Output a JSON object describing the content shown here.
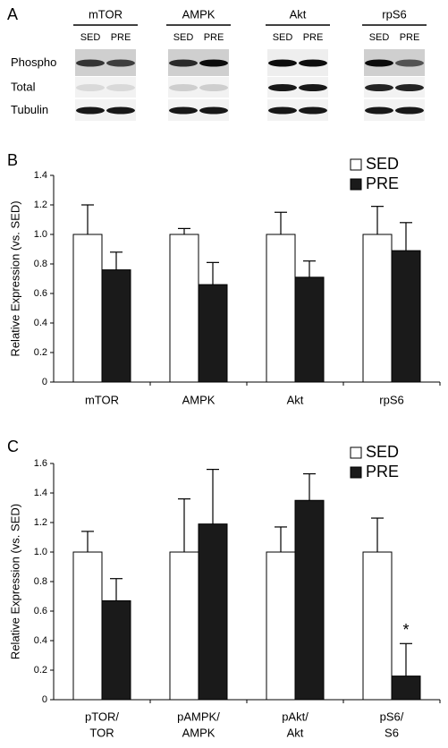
{
  "panel_a": {
    "label": "A",
    "groups": [
      {
        "name": "mTOR",
        "lanes": [
          "SED",
          "PRE"
        ]
      },
      {
        "name": "AMPK",
        "lanes": [
          "SED",
          "PRE"
        ]
      },
      {
        "name": "Akt",
        "lanes": [
          "SED",
          "PRE"
        ]
      },
      {
        "name": "rpS6",
        "lanes": [
          "SED",
          "PRE"
        ]
      }
    ],
    "rows": [
      "Phospho",
      "Total",
      "Tubulin"
    ]
  },
  "chart_data": [
    {
      "type": "bar",
      "label": "B",
      "ylabel": "Relative Expression (vs. SED)",
      "categories": [
        [
          "mTOR"
        ],
        [
          "AMPK"
        ],
        [
          "Akt"
        ],
        [
          "rpS6"
        ]
      ],
      "series": [
        {
          "name": "SED",
          "color": "#ffffff",
          "values": [
            1.0,
            1.0,
            1.0,
            1.0
          ],
          "errors": [
            0.2,
            0.04,
            0.15,
            0.19
          ]
        },
        {
          "name": "PRE",
          "color": "#1a1a1a",
          "values": [
            0.76,
            0.66,
            0.71,
            0.89
          ],
          "errors": [
            0.12,
            0.15,
            0.11,
            0.19
          ]
        }
      ],
      "ylim": [
        0,
        1.4
      ],
      "yticks": [
        0,
        0.2,
        0.4,
        0.6,
        0.8,
        {
          "value": 1,
          "label": "1.0"
        },
        1.2,
        1.4
      ],
      "legend": "top-right"
    },
    {
      "type": "bar",
      "label": "C",
      "ylabel": "Relative Expression (vs. SED)",
      "categories": [
        [
          "pTOR/",
          "TOR"
        ],
        [
          "pAMPK/",
          "AMPK"
        ],
        [
          "pAkt/",
          "Akt"
        ],
        [
          "pS6/",
          "S6"
        ]
      ],
      "series": [
        {
          "name": "SED",
          "color": "#ffffff",
          "values": [
            1.0,
            1.0,
            1.0,
            1.0
          ],
          "errors": [
            0.14,
            0.36,
            0.17,
            0.23
          ]
        },
        {
          "name": "PRE",
          "color": "#1a1a1a",
          "values": [
            0.67,
            1.19,
            1.35,
            0.16
          ],
          "errors": [
            0.15,
            0.37,
            0.18,
            0.22
          ],
          "annotations": [
            null,
            null,
            null,
            "*"
          ]
        }
      ],
      "ylim": [
        0,
        1.6
      ],
      "yticks": [
        0,
        0.2,
        0.4,
        0.6,
        0.8,
        {
          "value": 1,
          "label": "1.0"
        },
        1.2,
        1.4,
        1.6
      ],
      "legend": "top-right"
    }
  ]
}
